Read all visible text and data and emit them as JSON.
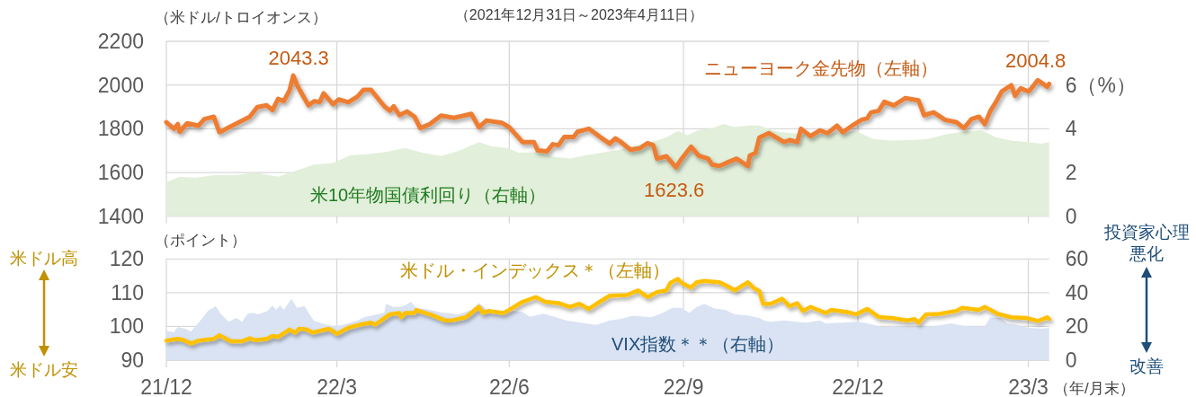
{
  "chart_data": [
    {
      "type": "line",
      "title": "（2021年12月31日～2023年4月11日）",
      "ylabel": "（米ドル/トロイオンス）",
      "xlim": [
        "2021-12-31",
        "2023-04-11"
      ],
      "xticks": [
        {
          "value": "2021-12-31",
          "label": null
        },
        {
          "value": "2022-03-31",
          "label": null
        },
        {
          "value": "2022-06-30",
          "label": null
        },
        {
          "value": "2022-09-30",
          "label": null
        },
        {
          "value": "2022-12-31",
          "label": null
        },
        {
          "value": "2023-03-31",
          "label": null
        }
      ],
      "ylim": [
        1400,
        2200
      ],
      "yticks": [
        1400,
        1600,
        1800,
        2000,
        2200
      ],
      "y2lim": [
        0,
        8
      ],
      "y2ticks": [
        0,
        2,
        4,
        {
          "value": 6,
          "label": "6（%）"
        }
      ],
      "grid": true,
      "tick_labels": "y",
      "series": [
        {
          "name": "ニューヨーク金先物（左軸）",
          "type": "line",
          "color": "#ed7d31",
          "x": [
            "2021-12-31",
            "2022-01-04",
            "2022-01-06",
            "2022-01-07",
            "2022-01-11",
            "2022-01-17",
            "2022-01-20",
            "2022-01-25",
            "2022-01-28",
            "2022-02-03",
            "2022-02-13",
            "2022-02-17",
            "2022-02-22",
            "2022-02-25",
            "2022-02-28",
            "2022-03-03",
            "2022-03-06",
            "2022-03-08",
            "2022-03-10",
            "2022-03-16",
            "2022-03-19",
            "2022-03-22",
            "2022-03-24",
            "2022-03-29",
            "2022-04-01",
            "2022-04-06",
            "2022-04-11",
            "2022-04-14",
            "2022-04-18",
            "2022-04-25",
            "2022-04-28",
            "2022-04-30",
            "2022-05-03",
            "2022-05-07",
            "2022-05-11",
            "2022-05-14",
            "2022-05-19",
            "2022-05-25",
            "2022-06-01",
            "2022-06-10",
            "2022-06-14",
            "2022-06-18",
            "2022-06-26",
            "2022-06-30",
            "2022-07-07",
            "2022-07-13",
            "2022-07-15",
            "2022-07-20",
            "2022-07-23",
            "2022-07-26",
            "2022-07-29",
            "2022-08-03",
            "2022-08-05",
            "2022-08-11",
            "2022-08-17",
            "2022-08-22",
            "2022-08-25",
            "2022-08-28",
            "2022-09-02",
            "2022-09-07",
            "2022-09-11",
            "2022-09-14",
            "2022-09-16",
            "2022-09-21",
            "2022-09-26",
            "2022-09-29",
            "2022-10-04",
            "2022-10-08",
            "2022-10-13",
            "2022-10-15",
            "2022-10-19",
            "2022-10-24",
            "2022-10-28",
            "2022-11-03",
            "2022-11-04",
            "2022-11-07",
            "2022-11-09",
            "2022-11-14",
            "2022-11-22",
            "2022-11-25",
            "2022-11-29",
            "2022-12-01",
            "2022-12-06",
            "2022-12-11",
            "2022-12-15",
            "2022-12-20",
            "2022-12-23",
            "2022-12-28",
            "2023-01-02",
            "2023-01-05",
            "2023-01-07",
            "2023-01-11",
            "2023-01-14",
            "2023-01-19",
            "2023-01-25",
            "2023-02-01",
            "2023-02-04",
            "2023-02-09",
            "2023-02-15",
            "2023-02-21",
            "2023-02-25",
            "2023-03-01",
            "2023-03-05",
            "2023-03-08",
            "2023-03-11",
            "2023-03-14",
            "2023-03-17",
            "2023-03-22",
            "2023-03-24",
            "2023-03-27",
            "2023-03-31",
            "2023-04-01",
            "2023-04-05",
            "2023-04-10",
            "2023-04-11"
          ],
          "values": [
            1830,
            1800,
            1821,
            1786,
            1825,
            1814,
            1844,
            1855,
            1784,
            1811,
            1855,
            1899,
            1907,
            1885,
            1937,
            1926,
            1975,
            2043.3,
            1999,
            1907,
            1926,
            1923,
            1962,
            1912,
            1934,
            1921,
            1948,
            1978,
            1978,
            1903,
            1882,
            1903,
            1862,
            1879,
            1855,
            1803,
            1821,
            1860,
            1850,
            1868,
            1807,
            1838,
            1827,
            1807,
            1739,
            1739,
            1701,
            1697,
            1729,
            1725,
            1762,
            1762,
            1786,
            1800,
            1762,
            1732,
            1756,
            1739,
            1704,
            1711,
            1734,
            1725,
            1663,
            1674,
            1623.6,
            1663,
            1718,
            1677,
            1663,
            1636,
            1630,
            1649,
            1663,
            1629,
            1677,
            1690,
            1759,
            1780,
            1739,
            1748,
            1739,
            1800,
            1766,
            1793,
            1780,
            1814,
            1784,
            1814,
            1841,
            1848,
            1875,
            1882,
            1923,
            1907,
            1940,
            1930,
            1862,
            1875,
            1841,
            1830,
            1803,
            1844,
            1855,
            1821,
            1882,
            1923,
            1971,
            1999,
            1951,
            1985,
            1971,
            1978,
            2022,
            1992,
            2004.8
          ]
        },
        {
          "name": "米10年物国債利回り（右軸）",
          "type": "area",
          "color": "#e2efda",
          "axis": "y2",
          "x": [
            "2021-12-31",
            "2022-01-07",
            "2022-01-15",
            "2022-01-25",
            "2022-02-05",
            "2022-02-16",
            "2022-02-28",
            "2022-03-10",
            "2022-03-19",
            "2022-03-29",
            "2022-04-07",
            "2022-04-17",
            "2022-04-26",
            "2022-05-06",
            "2022-05-15",
            "2022-05-25",
            "2022-06-03",
            "2022-06-14",
            "2022-06-21",
            "2022-06-29",
            "2022-07-05",
            "2022-07-15",
            "2022-07-24",
            "2022-08-01",
            "2022-08-09",
            "2022-08-18",
            "2022-08-28",
            "2022-09-05",
            "2022-09-13",
            "2022-09-21",
            "2022-09-27",
            "2022-10-02",
            "2022-10-08",
            "2022-10-15",
            "2022-10-21",
            "2022-10-27",
            "2022-11-03",
            "2022-11-09",
            "2022-11-18",
            "2022-12-04",
            "2022-12-17",
            "2022-12-30",
            "2023-01-08",
            "2023-01-18",
            "2023-01-30",
            "2023-02-06",
            "2023-02-15",
            "2023-02-25",
            "2023-03-06",
            "2023-03-14",
            "2023-03-22",
            "2023-03-31",
            "2023-04-07",
            "2023-04-11"
          ],
          "values": [
            1.55,
            1.81,
            1.75,
            1.88,
            1.88,
            1.99,
            1.81,
            2.09,
            2.36,
            2.43,
            2.78,
            2.84,
            2.94,
            3.12,
            2.91,
            2.75,
            2.98,
            3.39,
            3.19,
            3.12,
            2.91,
            2.94,
            2.71,
            2.64,
            2.78,
            2.91,
            3.05,
            3.25,
            3.39,
            3.6,
            3.9,
            3.71,
            3.94,
            4.01,
            4.22,
            4.08,
            4.15,
            4.15,
            3.87,
            3.74,
            3.81,
            3.9,
            3.53,
            3.46,
            3.49,
            3.53,
            3.74,
            3.87,
            3.94,
            3.6,
            3.46,
            3.39,
            3.32,
            3.39
          ]
        }
      ],
      "annotations": [
        {
          "text": "2043.3",
          "x": "2022-03-08",
          "y": 2043.3
        },
        {
          "text": "1623.6",
          "x": "2022-09-26",
          "y": 1623.6
        },
        {
          "text": "2004.8",
          "x": "2023-04-11",
          "y": 2004.8
        }
      ]
    },
    {
      "type": "line",
      "ylabel": "（ポイント）",
      "xlabel": "（年/月末）",
      "xlim": [
        "2021-12-31",
        "2023-04-11"
      ],
      "xticks": [
        {
          "value": "2021-12-31",
          "label": "21/12"
        },
        {
          "value": "2022-03-31",
          "label": "22/3"
        },
        {
          "value": "2022-06-30",
          "label": "22/6"
        },
        {
          "value": "2022-09-30",
          "label": "22/9"
        },
        {
          "value": "2022-12-31",
          "label": "22/12"
        },
        {
          "value": "2023-03-31",
          "label": "23/3"
        }
      ],
      "ylim": [
        90,
        120
      ],
      "yticks": [
        90,
        100,
        110,
        120
      ],
      "y2lim": [
        0,
        60
      ],
      "y2ticks": [
        0,
        20,
        40,
        60
      ],
      "grid": true,
      "series": [
        {
          "name": "米ドル・インデックス＊（左軸）",
          "type": "line",
          "color": "#ffc000",
          "x": [
            "2021-12-31",
            "2022-01-06",
            "2022-01-09",
            "2022-01-13",
            "2022-01-17",
            "2022-01-25",
            "2022-01-28",
            "2022-02-03",
            "2022-02-09",
            "2022-02-13",
            "2022-02-16",
            "2022-02-22",
            "2022-02-25",
            "2022-02-28",
            "2022-03-06",
            "2022-03-09",
            "2022-03-11",
            "2022-03-15",
            "2022-03-18",
            "2022-03-27",
            "2022-03-31",
            "2022-04-03",
            "2022-04-06",
            "2022-04-12",
            "2022-04-18",
            "2022-04-20",
            "2022-04-23",
            "2022-04-28",
            "2022-05-03",
            "2022-05-04",
            "2022-05-06",
            "2022-05-11",
            "2022-05-12",
            "2022-05-15",
            "2022-05-20",
            "2022-05-27",
            "2022-05-31",
            "2022-06-03",
            "2022-06-07",
            "2022-06-14",
            "2022-06-16",
            "2022-06-19",
            "2022-06-27",
            "2022-06-30",
            "2022-07-07",
            "2022-07-14",
            "2022-07-19",
            "2022-07-26",
            "2022-08-01",
            "2022-08-06",
            "2022-08-11",
            "2022-08-15",
            "2022-08-22",
            "2022-08-31",
            "2022-09-06",
            "2022-09-11",
            "2022-09-16",
            "2022-09-21",
            "2022-09-23",
            "2022-09-27",
            "2022-09-29",
            "2022-10-04",
            "2022-10-07",
            "2022-10-11",
            "2022-10-19",
            "2022-10-24",
            "2022-10-27",
            "2022-11-03",
            "2022-11-06",
            "2022-11-09",
            "2022-11-11",
            "2022-11-15",
            "2022-11-21",
            "2022-11-25",
            "2022-11-29",
            "2022-12-02",
            "2022-12-06",
            "2022-12-10",
            "2022-12-14",
            "2022-12-17",
            "2022-12-25",
            "2022-12-30",
            "2023-01-05",
            "2023-01-11",
            "2023-01-18",
            "2023-01-26",
            "2023-01-30",
            "2023-02-01",
            "2023-02-05",
            "2023-02-12",
            "2023-02-21",
            "2023-02-24",
            "2023-03-05",
            "2023-03-08",
            "2023-03-15",
            "2023-03-22",
            "2023-03-30",
            "2023-04-05",
            "2023-04-10",
            "2023-04-11"
          ],
          "values": [
            95.8,
            96.3,
            96.0,
            94.9,
            95.8,
            96.3,
            97.4,
            95.6,
            95.6,
            96.5,
            95.9,
            96.3,
            97.2,
            96.9,
            99.1,
            98.1,
            99.3,
            99.1,
            98.2,
            99.3,
            97.8,
            98.7,
            99.6,
            100.5,
            101.1,
            100.5,
            101.6,
            103.6,
            104.0,
            102.7,
            104.0,
            104.0,
            104.9,
            104.3,
            103.4,
            101.8,
            101.8,
            102.2,
            102.7,
            105.8,
            104.0,
            104.6,
            104.0,
            104.9,
            107.3,
            108.7,
            107.3,
            106.9,
            105.8,
            106.7,
            105.2,
            106.7,
            109.1,
            109.3,
            110.7,
            108.7,
            110.2,
            110.7,
            112.9,
            114.1,
            112.9,
            111.5,
            113.1,
            113.5,
            113.1,
            111.7,
            110.7,
            113.1,
            111.4,
            110.5,
            106.7,
            106.7,
            108.2,
            106.0,
            106.9,
            104.6,
            105.8,
            104.9,
            104.0,
            104.9,
            104.3,
            103.6,
            105.2,
            102.8,
            102.5,
            101.8,
            102.2,
            101.1,
            103.6,
            103.7,
            104.6,
            105.5,
            104.9,
            105.8,
            103.7,
            102.7,
            102.5,
            101.6,
            102.7,
            102.2
          ]
        },
        {
          "name": "VIX指数＊＊（右軸）",
          "type": "area",
          "color": "#dae3f3",
          "axis": "y2",
          "x": [
            "2021-12-31",
            "2022-01-04",
            "2022-01-06",
            "2022-01-10",
            "2022-01-13",
            "2022-01-15",
            "2022-01-18",
            "2022-01-22",
            "2022-01-26",
            "2022-01-29",
            "2022-02-02",
            "2022-02-06",
            "2022-02-09",
            "2022-02-12",
            "2022-02-15",
            "2022-02-17",
            "2022-02-22",
            "2022-02-25",
            "2022-02-27",
            "2022-03-01",
            "2022-03-03",
            "2022-03-07",
            "2022-03-10",
            "2022-03-14",
            "2022-03-17",
            "2022-03-19",
            "2022-03-23",
            "2022-03-29",
            "2022-04-03",
            "2022-04-06",
            "2022-04-11",
            "2022-04-15",
            "2022-04-20",
            "2022-04-25",
            "2022-04-26",
            "2022-04-30",
            "2022-05-03",
            "2022-05-06",
            "2022-05-09",
            "2022-05-12",
            "2022-05-19",
            "2022-05-25",
            "2022-06-03",
            "2022-06-10",
            "2022-06-14",
            "2022-06-18",
            "2022-06-26",
            "2022-06-30",
            "2022-07-07",
            "2022-07-11",
            "2022-07-18",
            "2022-07-24",
            "2022-07-30",
            "2022-08-09",
            "2022-08-15",
            "2022-08-22",
            "2022-08-28",
            "2022-09-03",
            "2022-09-13",
            "2022-09-19",
            "2022-09-24",
            "2022-09-29",
            "2022-10-03",
            "2022-10-07",
            "2022-10-11",
            "2022-10-16",
            "2022-10-22",
            "2022-10-27",
            "2022-11-03",
            "2022-11-09",
            "2022-11-12",
            "2022-11-15",
            "2022-11-22",
            "2022-11-28",
            "2022-12-04",
            "2022-12-11",
            "2022-12-14",
            "2022-12-23",
            "2022-12-31",
            "2023-01-05",
            "2023-01-13",
            "2023-01-21",
            "2023-01-30",
            "2023-02-09",
            "2023-02-18",
            "2023-02-26",
            "2023-03-08",
            "2023-03-11",
            "2023-03-16",
            "2023-03-20",
            "2023-03-25",
            "2023-03-31",
            "2023-04-07",
            "2023-04-11"
          ],
          "values": [
            17.4,
            16.5,
            19.7,
            18.6,
            16.9,
            19.7,
            23.6,
            29.3,
            32.1,
            27.2,
            22.7,
            25.0,
            22.7,
            27.5,
            28.1,
            27.2,
            28.9,
            32.5,
            29.8,
            32.5,
            29.8,
            36.4,
            31.0,
            32.1,
            26.3,
            23.3,
            21.8,
            20.1,
            20.9,
            21.8,
            23.6,
            25.7,
            26.8,
            28.1,
            33.4,
            31.6,
            31.6,
            32.5,
            34.6,
            31.0,
            29.8,
            28.4,
            27.2,
            29.8,
            33.9,
            29.8,
            28.1,
            29.3,
            28.6,
            25.7,
            27.5,
            25.7,
            23.6,
            21.8,
            20.9,
            23.6,
            24.5,
            26.3,
            25.4,
            28.1,
            31.0,
            31.0,
            28.1,
            31.6,
            33.4,
            30.7,
            29.8,
            27.2,
            26.5,
            25.0,
            23.3,
            22.7,
            23.6,
            22.7,
            22.2,
            23.6,
            21.8,
            22.2,
            22.7,
            21.8,
            19.7,
            20.1,
            19.7,
            20.1,
            21.8,
            20.1,
            20.1,
            25.4,
            25.0,
            21.8,
            20.9,
            19.2,
            18.6,
            19.2
          ]
        }
      ],
      "annotations": [
        "米ドル高",
        "米ドル安",
        "投資家心理悪化",
        "改善"
      ]
    }
  ]
}
